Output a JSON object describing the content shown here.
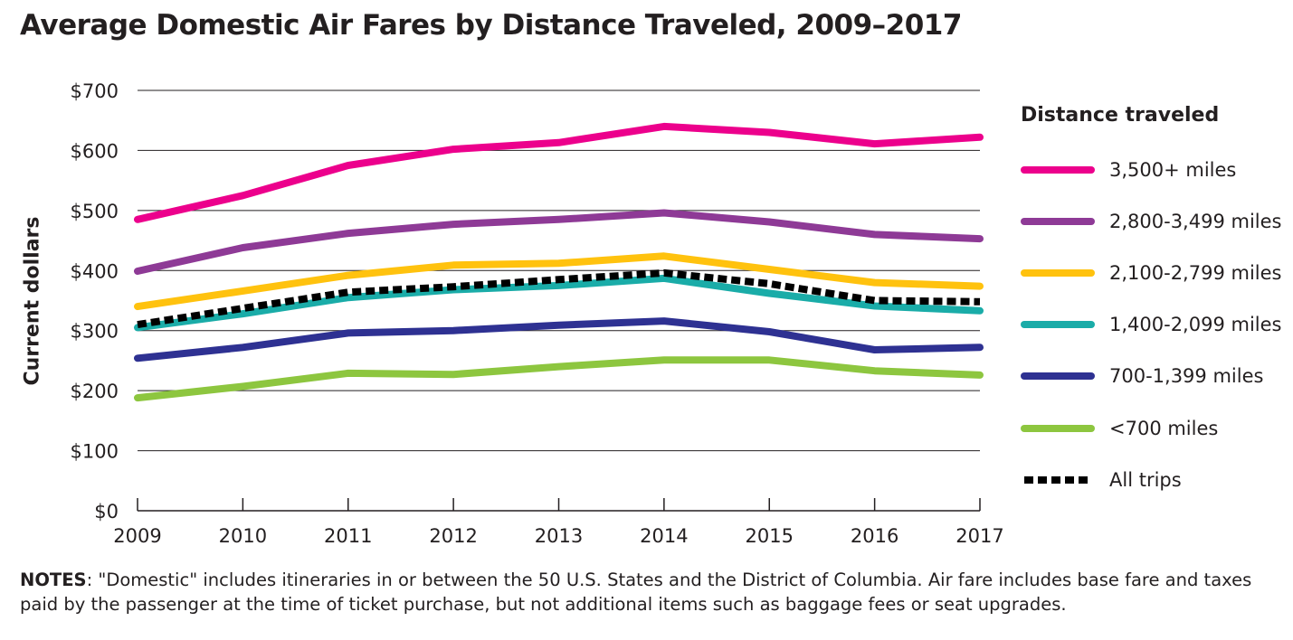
{
  "chart_data": {
    "type": "line",
    "title": "Average Domestic Air Fares by Distance Traveled, 2009–2017",
    "xlabel": "",
    "ylabel": "Current dollars",
    "x": [
      "2009",
      "2010",
      "2011",
      "2012",
      "2013",
      "2014",
      "2015",
      "2016",
      "2017"
    ],
    "ylim": [
      0,
      700
    ],
    "yticks": [
      0,
      100,
      200,
      300,
      400,
      500,
      600,
      700
    ],
    "ytick_labels": [
      "$0",
      "$100",
      "$200",
      "$300",
      "$400",
      "$500",
      "$600",
      "$700"
    ],
    "grid": true,
    "legend_title": "Distance traveled",
    "legend_position": "right",
    "series": [
      {
        "name": "3,500+ miles",
        "color": "#ec008c",
        "dashed": false,
        "values": [
          485,
          525,
          575,
          602,
          613,
          640,
          630,
          611,
          622
        ]
      },
      {
        "name": "2,800-3,499 miles",
        "color": "#8e3a96",
        "dashed": false,
        "values": [
          399,
          438,
          462,
          477,
          485,
          496,
          481,
          460,
          453
        ]
      },
      {
        "name": "2,100-2,799 miles",
        "color": "#ffc20e",
        "dashed": false,
        "values": [
          340,
          366,
          392,
          409,
          412,
          424,
          402,
          380,
          374
        ]
      },
      {
        "name": "1,400-2,099 miles",
        "color": "#1aaca8",
        "dashed": false,
        "values": [
          305,
          328,
          355,
          368,
          375,
          387,
          362,
          341,
          333
        ]
      },
      {
        "name": "700-1,399 miles",
        "color": "#2e3192",
        "dashed": false,
        "values": [
          254,
          272,
          296,
          300,
          309,
          316,
          298,
          268,
          272
        ]
      },
      {
        "name": "<700 miles",
        "color": "#8dc63f",
        "dashed": false,
        "values": [
          188,
          207,
          229,
          227,
          240,
          251,
          251,
          233,
          226
        ]
      },
      {
        "name": "All trips",
        "color": "#000000",
        "dashed": true,
        "values": [
          310,
          337,
          364,
          373,
          385,
          396,
          378,
          350,
          348
        ]
      }
    ]
  },
  "notes": {
    "label": "NOTES",
    "text": ": \"Domestic\" includes itineraries in or between the 50 U.S. States and the District of Columbia. Air fare includes base fare and taxes paid by the passenger at the time of ticket purchase, but not additional items such as baggage fees or seat upgrades."
  }
}
